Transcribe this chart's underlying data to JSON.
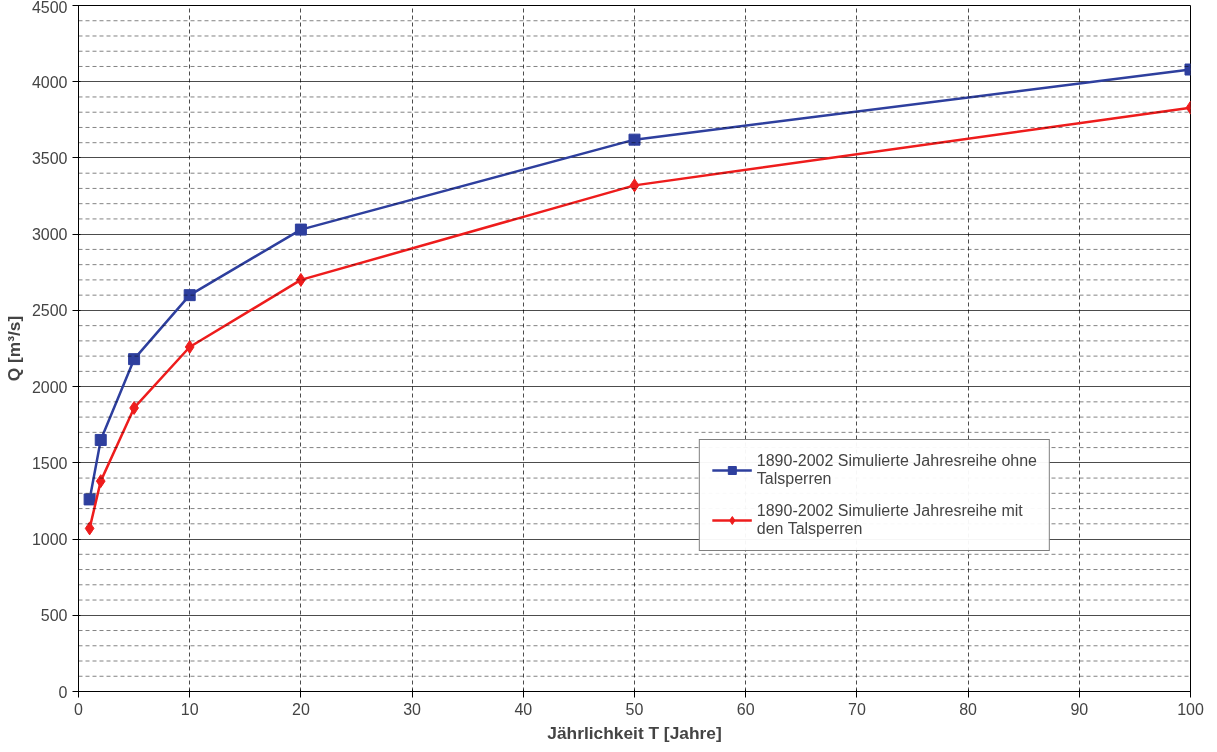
{
  "chart_data": {
    "type": "line",
    "xlabel": "Jährlichkeit T [Jahre]",
    "ylabel": "Q [m³/s]",
    "x": [
      1,
      2,
      5,
      10,
      20,
      50,
      100
    ],
    "series": [
      {
        "name": "1890-2002 Simulierte Jahresreihe ohne Talsperren",
        "color": "#2e3f9e",
        "marker": "square",
        "values": [
          1260,
          1650,
          2180,
          2600,
          3030,
          3620,
          4080
        ]
      },
      {
        "name": "1890-2002 Simulierte Jahresreihe mit den Talsperren",
        "color": "#ee1c1c",
        "marker": "diamond",
        "values": [
          1070,
          1380,
          1860,
          2260,
          2700,
          3320,
          3830
        ]
      }
    ],
    "xlim": [
      0,
      100
    ],
    "xticks": [
      0,
      10,
      20,
      30,
      40,
      50,
      60,
      70,
      80,
      90,
      100
    ],
    "ylim": [
      0,
      4500
    ],
    "yticks": [
      0,
      500,
      1000,
      1500,
      2000,
      2500,
      3000,
      3500,
      4000,
      4500
    ],
    "grid": true,
    "legend": "bottom right",
    "line_style": "solid"
  }
}
